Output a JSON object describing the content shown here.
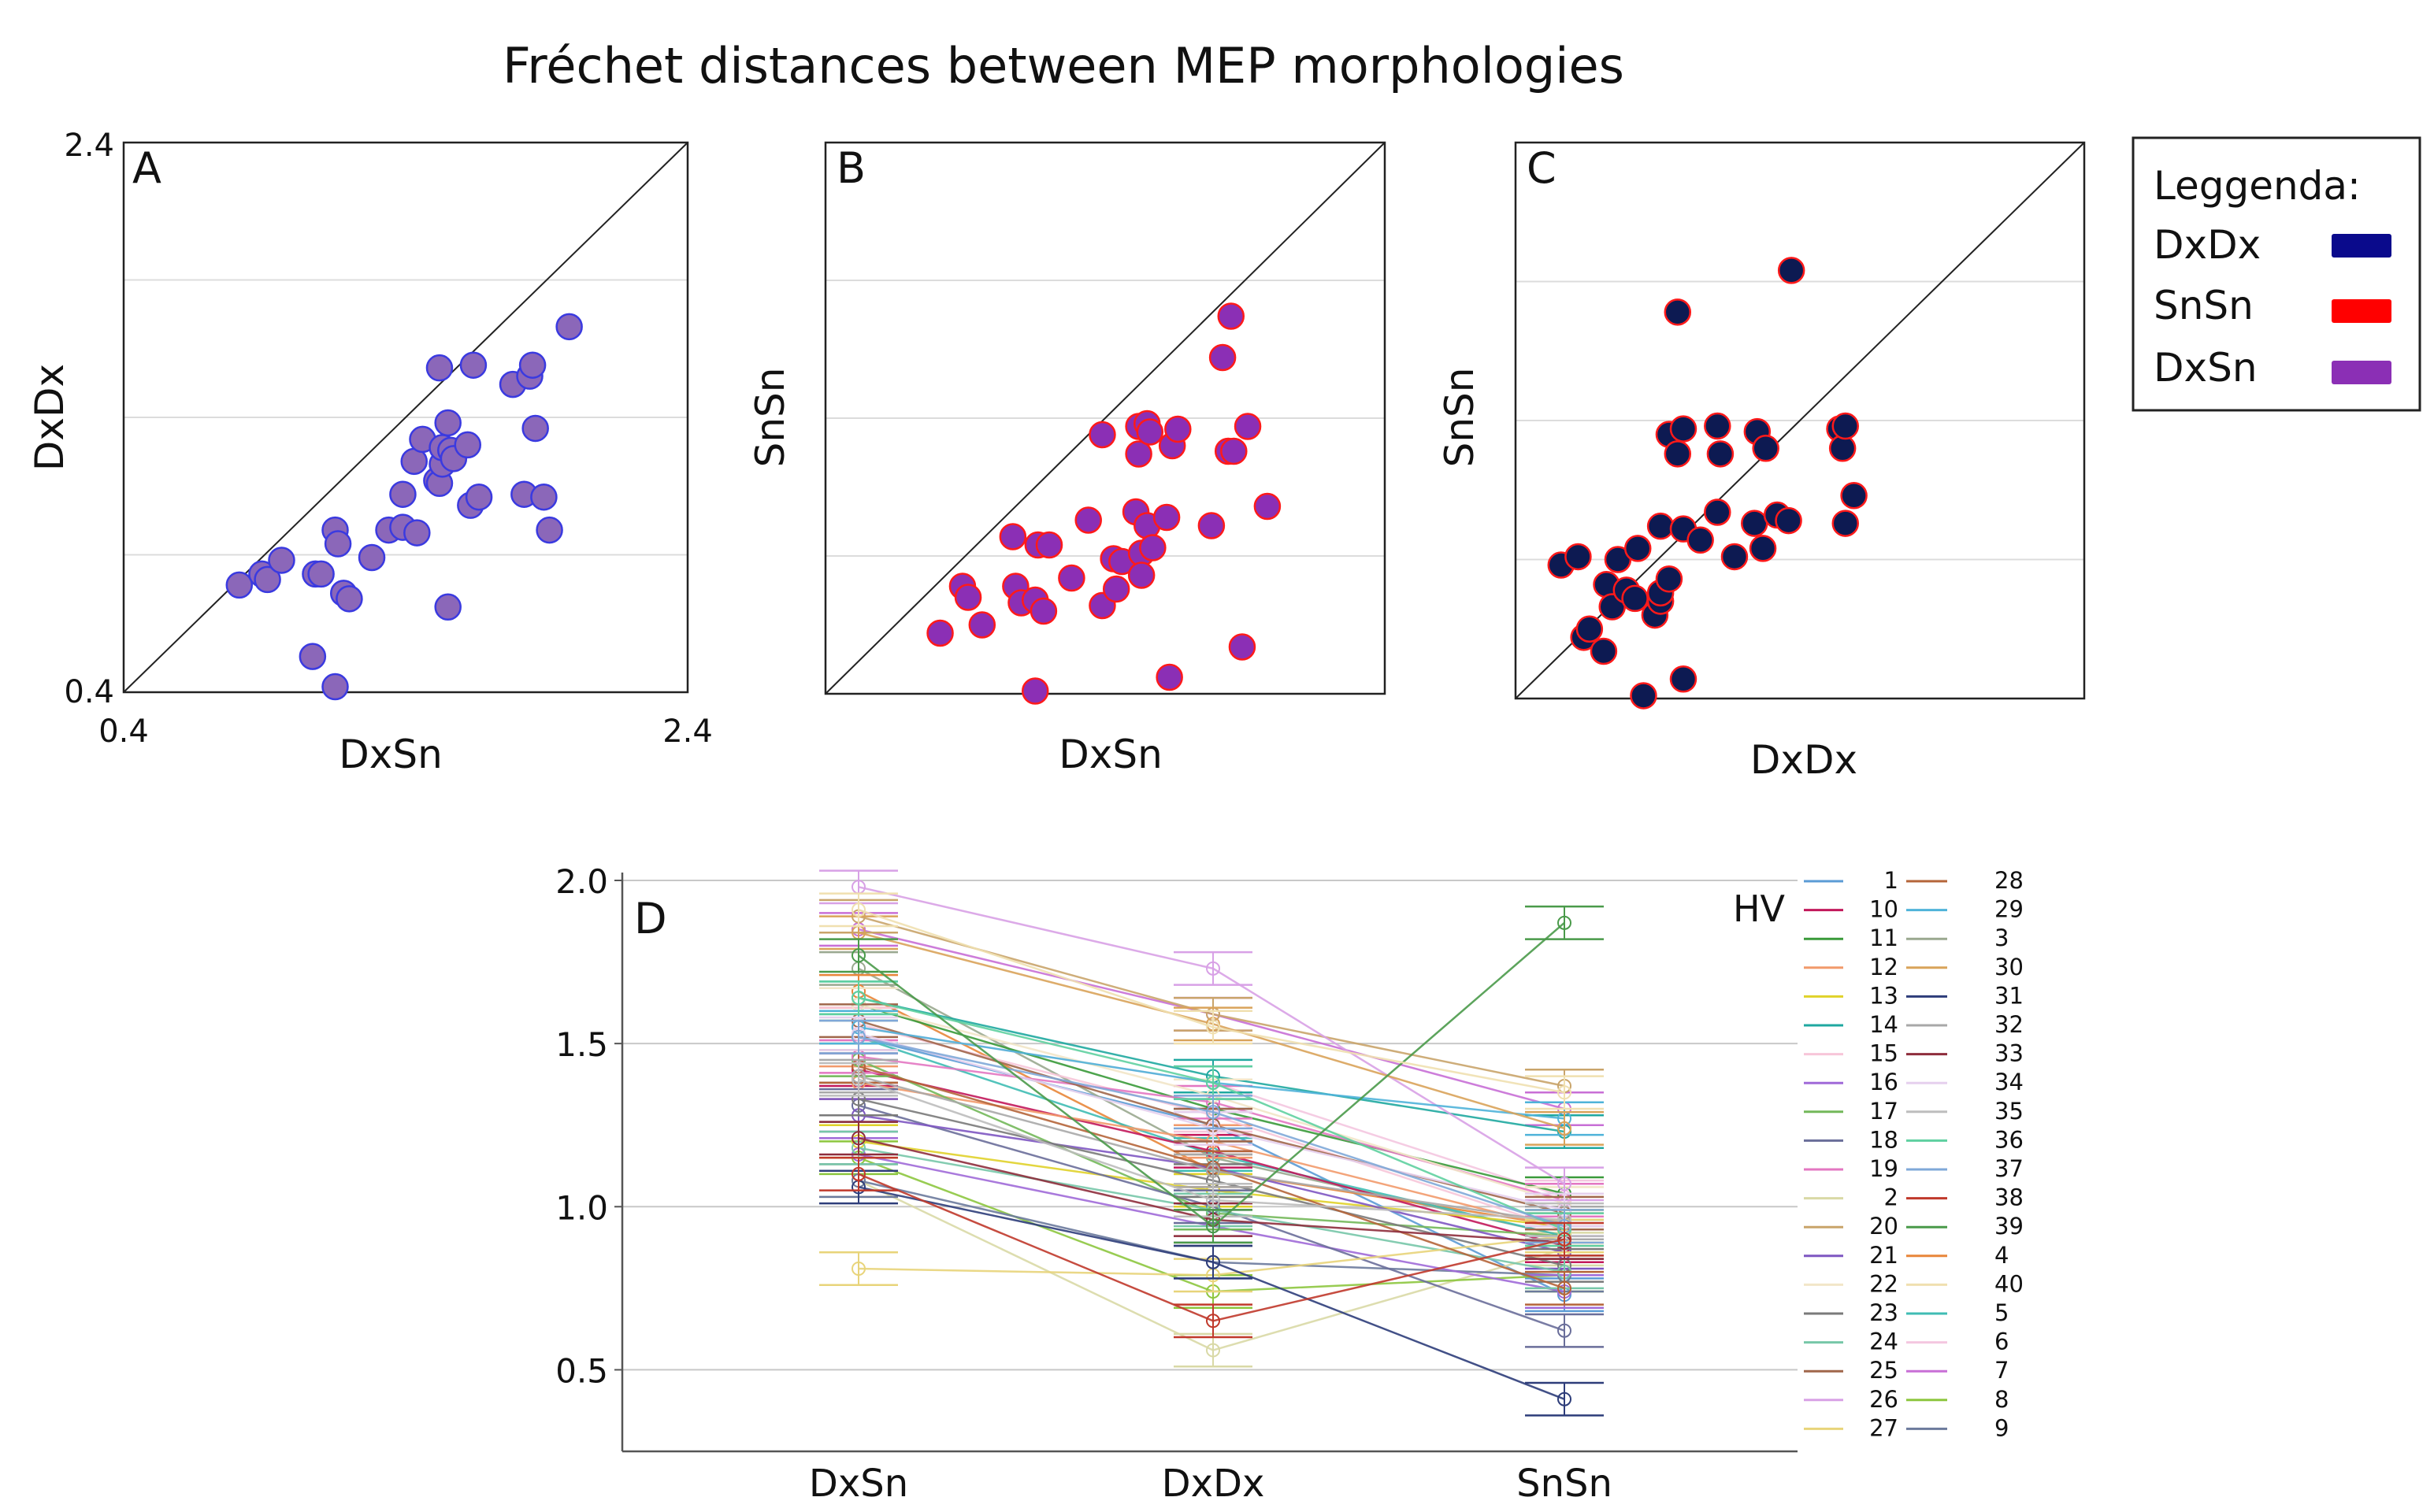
{
  "figure": {
    "title": "Fréchet distances between MEP morphologies"
  },
  "legend": {
    "title": "Leggenda:",
    "items": [
      {
        "label": "DxDx",
        "color": "#0a0a8c"
      },
      {
        "label": "SnSn",
        "color": "#ff0000"
      },
      {
        "label": "DxSn",
        "color": "#8b2fb5"
      }
    ]
  },
  "chart_data": [
    {
      "type": "scatter",
      "panel": "A",
      "xlabel": "DxSn",
      "ylabel": "DxDx",
      "xlim": [
        0.4,
        2.4
      ],
      "ylim": [
        0.4,
        2.4
      ],
      "x_tick_labels": [
        "0.4",
        "2.4"
      ],
      "y_tick_labels": [
        "0.4",
        "2.4"
      ],
      "gridlines_y": [
        0.9,
        1.4,
        1.9
      ],
      "diagonal": true,
      "point_fill": "#8b67b9",
      "point_stroke": "#3a3ae0",
      "x": [
        0.81,
        0.89,
        0.91,
        0.96,
        1.07,
        1.08,
        1.1,
        1.15,
        1.15,
        1.16,
        1.18,
        1.2,
        1.28,
        1.34,
        1.39,
        1.39,
        1.43,
        1.44,
        1.46,
        1.51,
        1.52,
        1.52,
        1.53,
        1.53,
        1.55,
        1.55,
        1.56,
        1.57,
        1.62,
        1.63,
        1.64,
        1.66,
        1.78,
        1.82,
        1.84,
        1.85,
        1.86,
        1.89,
        1.91,
        1.98
      ],
      "y": [
        0.79,
        0.83,
        0.81,
        0.88,
        0.53,
        0.83,
        0.83,
        0.42,
        0.99,
        0.94,
        0.76,
        0.74,
        0.89,
        0.99,
        1.12,
        1.0,
        1.24,
        0.98,
        1.32,
        1.17,
        1.58,
        1.16,
        1.23,
        1.29,
        0.71,
        1.38,
        1.28,
        1.25,
        1.3,
        1.08,
        1.59,
        1.11,
        1.52,
        1.12,
        1.55,
        1.59,
        1.36,
        1.11,
        0.99,
        1.73
      ]
    },
    {
      "type": "scatter",
      "panel": "B",
      "xlabel": "DxSn",
      "ylabel": "SnSn",
      "xlim": [
        0.4,
        2.4
      ],
      "ylim": [
        0.4,
        2.4
      ],
      "gridlines_y": [
        0.9,
        1.4,
        1.9
      ],
      "diagonal": true,
      "point_fill": "#8b2fb5",
      "point_stroke": "#ff1a1a",
      "x": [
        0.81,
        0.89,
        0.91,
        0.96,
        1.07,
        1.08,
        1.1,
        1.15,
        1.15,
        1.16,
        1.18,
        1.2,
        1.28,
        1.34,
        1.39,
        1.39,
        1.43,
        1.44,
        1.46,
        1.51,
        1.52,
        1.52,
        1.53,
        1.53,
        1.55,
        1.55,
        1.56,
        1.57,
        1.62,
        1.63,
        1.64,
        1.66,
        1.78,
        1.82,
        1.84,
        1.85,
        1.86,
        1.89,
        1.91,
        1.98
      ],
      "y": [
        0.62,
        0.79,
        0.75,
        0.65,
        0.97,
        0.79,
        0.73,
        0.41,
        0.74,
        0.94,
        0.7,
        0.94,
        0.82,
        1.03,
        0.72,
        1.34,
        0.89,
        0.78,
        0.88,
        1.06,
        1.37,
        1.27,
        0.91,
        0.83,
        1.01,
        1.38,
        1.35,
        0.93,
        1.04,
        0.46,
        1.3,
        1.36,
        1.01,
        1.62,
        1.28,
        1.77,
        1.28,
        0.57,
        1.37,
        1.08
      ]
    },
    {
      "type": "scatter",
      "panel": "C",
      "xlabel": "DxDx",
      "ylabel": "SnSn",
      "xlim": [
        0.4,
        2.4
      ],
      "ylim": [
        0.4,
        2.4
      ],
      "gridlines_y": [
        0.9,
        1.4,
        1.9
      ],
      "diagonal": true,
      "point_fill": "#0d1a52",
      "point_stroke": "#ff1a1a",
      "x": [
        0.56,
        0.62,
        0.64,
        0.66,
        0.71,
        0.72,
        0.74,
        0.76,
        0.79,
        0.82,
        0.83,
        0.85,
        0.89,
        0.91,
        0.91,
        0.91,
        0.94,
        0.94,
        0.97,
        0.97,
        0.99,
        0.99,
        0.99,
        1.05,
        1.11,
        1.11,
        1.12,
        1.17,
        1.24,
        1.25,
        1.27,
        1.28,
        1.32,
        1.36,
        1.37,
        1.54,
        1.55,
        1.56,
        1.56,
        1.59
      ],
      "y": [
        0.88,
        0.91,
        0.62,
        0.65,
        0.57,
        0.81,
        0.73,
        0.9,
        0.79,
        0.76,
        0.94,
        0.41,
        0.7,
        1.02,
        0.75,
        0.78,
        0.83,
        1.35,
        1.79,
        1.28,
        1.37,
        1.01,
        0.47,
        0.97,
        1.07,
        1.38,
        1.28,
        0.91,
        1.03,
        1.36,
        0.94,
        1.3,
        1.06,
        1.04,
        1.94,
        1.37,
        1.3,
        1.38,
        1.03,
        1.13
      ]
    },
    {
      "type": "line",
      "panel": "D",
      "categories": [
        "DxSn",
        "DxDx",
        "SnSn"
      ],
      "ylim": [
        0.25,
        2.0
      ],
      "y_ticks": [
        "0.5",
        "1.0",
        "1.5",
        "2.0"
      ],
      "gridlines_y": [
        0.5,
        1.0,
        1.5,
        2.0
      ],
      "legend_title": "HV",
      "legend_columns": [
        [
          "1",
          "10",
          "11",
          "12",
          "13",
          "14",
          "15",
          "16",
          "17",
          "18",
          "19",
          "2",
          "20",
          "21",
          "22",
          "23",
          "24",
          "25",
          "26",
          "27"
        ],
        [
          "28",
          "29",
          "3",
          "30",
          "31",
          "32",
          "33",
          "34",
          "35",
          "36",
          "37",
          "38",
          "39",
          "4",
          "40",
          "5",
          "6",
          "7",
          "8",
          "9"
        ]
      ],
      "series": [
        {
          "name": "1",
          "color": "#5b9bd5",
          "values": [
            1.52,
            1.25,
            0.73
          ]
        },
        {
          "name": "2",
          "color": "#d9d9a6",
          "values": [
            1.08,
            0.56,
            0.87
          ]
        },
        {
          "name": "3",
          "color": "#9aa88f",
          "values": [
            1.73,
            1.15,
            0.91
          ]
        },
        {
          "name": "4",
          "color": "#e8863a",
          "values": [
            1.66,
            1.11,
            0.94
          ]
        },
        {
          "name": "5",
          "color": "#3fbcb4",
          "values": [
            1.52,
            1.16,
            0.91
          ]
        },
        {
          "name": "6",
          "color": "#f4c7e0",
          "values": [
            1.55,
            1.38,
            1.03
          ]
        },
        {
          "name": "7",
          "color": "#c86fd6",
          "values": [
            1.85,
            1.59,
            1.3
          ]
        },
        {
          "name": "8",
          "color": "#8dc63f",
          "values": [
            1.15,
            0.74,
            0.79
          ]
        },
        {
          "name": "9",
          "color": "#6c7a9c",
          "values": [
            1.08,
            0.83,
            0.79
          ]
        },
        {
          "name": "10",
          "color": "#c2185b",
          "values": [
            1.42,
            1.17,
            0.88
          ]
        },
        {
          "name": "11",
          "color": "#3a9a3a",
          "values": [
            1.62,
            1.3,
            1.04
          ]
        },
        {
          "name": "12",
          "color": "#f29a6b",
          "values": [
            1.38,
            1.2,
            0.93
          ]
        },
        {
          "name": "13",
          "color": "#e0d22a",
          "values": [
            1.2,
            1.05,
            0.94
          ]
        },
        {
          "name": "14",
          "color": "#1fa8a0",
          "values": [
            1.64,
            1.4,
            1.23
          ]
        },
        {
          "name": "15",
          "color": "#f7c6d9",
          "values": [
            1.56,
            1.28,
            0.93
          ]
        },
        {
          "name": "16",
          "color": "#a06ad8",
          "values": [
            1.16,
            0.94,
            0.74
          ]
        },
        {
          "name": "17",
          "color": "#73b85a",
          "values": [
            1.45,
            0.98,
            0.91
          ]
        },
        {
          "name": "18",
          "color": "#6a6e9a",
          "values": [
            1.31,
            1.0,
            0.62
          ]
        },
        {
          "name": "19",
          "color": "#e377c2",
          "values": [
            1.46,
            1.32,
            1.02
          ]
        },
        {
          "name": "20",
          "color": "#c9a46a",
          "values": [
            1.89,
            1.59,
            1.37
          ]
        },
        {
          "name": "21",
          "color": "#7e57c2",
          "values": [
            1.28,
            1.12,
            0.86
          ]
        },
        {
          "name": "22",
          "color": "#f2e6c8",
          "values": [
            1.62,
            1.34,
            1.01
          ]
        },
        {
          "name": "23",
          "color": "#7a7a7a",
          "values": [
            1.33,
            1.08,
            0.82
          ]
        },
        {
          "name": "24",
          "color": "#77c7a8",
          "values": [
            1.18,
            0.99,
            0.8
          ]
        },
        {
          "name": "25",
          "color": "#a0674b",
          "values": [
            1.57,
            1.25,
            0.98
          ]
        },
        {
          "name": "26",
          "color": "#d8a1e6",
          "values": [
            1.98,
            1.73,
            1.07
          ]
        },
        {
          "name": "27",
          "color": "#e8d47a",
          "values": [
            0.81,
            0.79,
            0.91
          ]
        },
        {
          "name": "28",
          "color": "#b5653a",
          "values": [
            1.43,
            1.12,
            0.75
          ]
        },
        {
          "name": "29",
          "color": "#4fb3d9",
          "values": [
            1.55,
            1.38,
            1.27
          ]
        },
        {
          "name": "30",
          "color": "#d9a35a",
          "values": [
            1.84,
            1.56,
            1.24
          ]
        },
        {
          "name": "31",
          "color": "#2e3d7a",
          "values": [
            1.06,
            0.83,
            0.41
          ]
        },
        {
          "name": "32",
          "color": "#a8a8a8",
          "values": [
            1.4,
            1.11,
            0.95
          ]
        },
        {
          "name": "33",
          "color": "#8e2d3c",
          "values": [
            1.21,
            0.96,
            0.89
          ]
        },
        {
          "name": "34",
          "color": "#e6d0ee",
          "values": [
            1.53,
            1.24,
            0.99
          ]
        },
        {
          "name": "35",
          "color": "#bdbdbd",
          "values": [
            1.39,
            1.02,
            0.96
          ]
        },
        {
          "name": "36",
          "color": "#5fd0a0",
          "values": [
            1.64,
            1.38,
            0.93
          ]
        },
        {
          "name": "37",
          "color": "#7fa8d8",
          "values": [
            1.52,
            1.29,
            0.94
          ]
        },
        {
          "name": "38",
          "color": "#c0392b",
          "values": [
            1.1,
            0.65,
            0.9
          ]
        },
        {
          "name": "39",
          "color": "#4a9a4a",
          "values": [
            1.77,
            0.94,
            1.87
          ]
        },
        {
          "name": "40",
          "color": "#f0e0b0",
          "values": [
            1.91,
            1.55,
            1.35
          ]
        }
      ]
    }
  ]
}
